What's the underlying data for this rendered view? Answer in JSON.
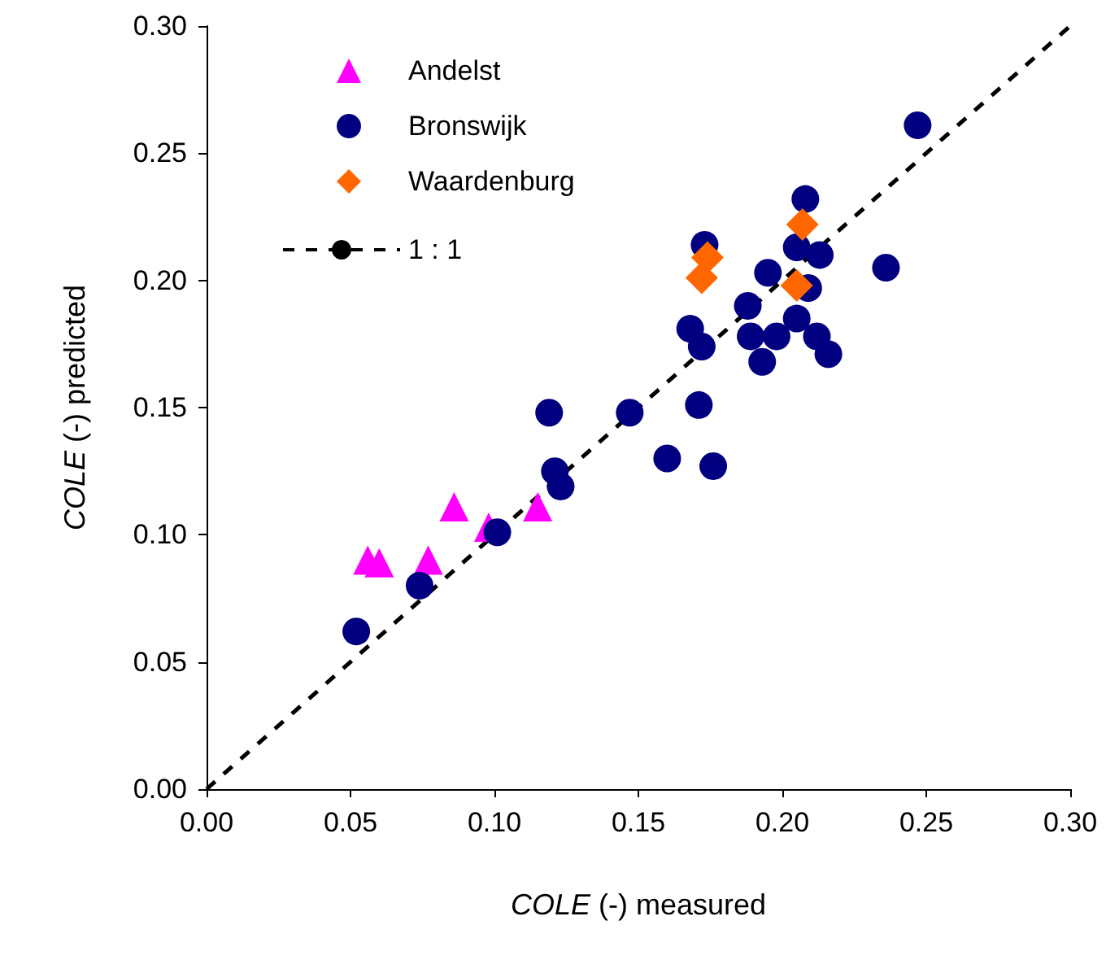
{
  "chart_data": {
    "type": "scatter",
    "xlabel": "COLE (-) measured",
    "ylabel": "COLE (-) predicted",
    "xlim": [
      0,
      0.3
    ],
    "ylim": [
      0,
      0.3
    ],
    "xticks": [
      {
        "value": 0,
        "label": "0.00"
      },
      0.05,
      {
        "value": 0.1,
        "label": "0.10"
      },
      0.15,
      {
        "value": 0.2,
        "label": "0.20"
      },
      0.25,
      {
        "value": 0.3,
        "label": "0.30"
      }
    ],
    "yticks": [
      {
        "value": 0,
        "label": "0.00"
      },
      0.05,
      {
        "value": 0.1,
        "label": "0.10"
      },
      0.15,
      {
        "value": 0.2,
        "label": "0.20"
      },
      0.25,
      {
        "value": 0.3,
        "label": "0.30"
      }
    ],
    "grid": false,
    "legend": "top left",
    "series": [
      {
        "name": "Andelst",
        "color": "#ff00ff",
        "marker": "triangle",
        "x": [
          0.056,
          0.06,
          0.077,
          0.086,
          0.098,
          0.115
        ],
        "values": [
          0.09,
          0.089,
          0.09,
          0.111,
          0.103,
          0.111
        ]
      },
      {
        "name": "Bronswijk",
        "color": "#000080",
        "marker": "circle",
        "x": [
          0.052,
          0.074,
          0.101,
          0.119,
          0.121,
          0.123,
          0.147,
          0.16,
          0.168,
          0.171,
          0.172,
          0.173,
          0.176,
          0.188,
          0.189,
          0.193,
          0.195,
          0.198,
          0.205,
          0.205,
          0.208,
          0.209,
          0.212,
          0.213,
          0.216,
          0.236,
          0.247
        ],
        "values": [
          0.062,
          0.08,
          0.101,
          0.148,
          0.125,
          0.119,
          0.148,
          0.13,
          0.181,
          0.151,
          0.174,
          0.214,
          0.127,
          0.19,
          0.178,
          0.168,
          0.203,
          0.178,
          0.213,
          0.185,
          0.232,
          0.197,
          0.178,
          0.21,
          0.171,
          0.205,
          0.261
        ]
      },
      {
        "name": "Waardenburg",
        "color": "#ff6600",
        "marker": "diamond",
        "x": [
          0.172,
          0.174,
          0.205,
          0.207
        ],
        "values": [
          0.201,
          0.209,
          0.198,
          0.222
        ]
      },
      {
        "name": "1 : 1",
        "type": "line",
        "color": "#000000",
        "marker": "none",
        "line_style": "dashed",
        "x": [
          0,
          0.3
        ],
        "values": [
          0,
          0.3
        ]
      }
    ]
  }
}
